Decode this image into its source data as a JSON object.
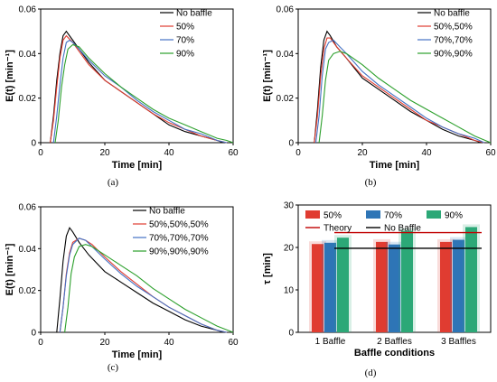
{
  "chart_data": [
    {
      "panel": "(a)",
      "type": "line",
      "xlabel": "Time [min]",
      "ylabel": "E(t) [min⁻¹]",
      "xlim": [
        0,
        60
      ],
      "ylim": [
        0,
        0.06
      ],
      "xticks": [
        "0",
        "20",
        "40",
        "60"
      ],
      "yticks": [
        "0",
        "0.02",
        "0.04",
        "0.06"
      ],
      "legend_position": "top-right",
      "series": [
        {
          "name": "No baffle",
          "color": "#000000",
          "x": [
            3,
            4,
            5,
            6,
            7,
            8,
            10,
            12,
            15,
            20,
            25,
            30,
            35,
            40,
            45,
            50,
            55,
            57
          ],
          "y": [
            0,
            0.012,
            0.028,
            0.04,
            0.048,
            0.05,
            0.046,
            0.042,
            0.036,
            0.028,
            0.023,
            0.018,
            0.013,
            0.008,
            0.005,
            0.003,
            0.001,
            0
          ]
        },
        {
          "name": "50%",
          "color": "#e03c31",
          "x": [
            3,
            4,
            5,
            6,
            7,
            8,
            10,
            12,
            15,
            20,
            25,
            30,
            35,
            40,
            45,
            50,
            55,
            58
          ],
          "y": [
            0,
            0.01,
            0.025,
            0.038,
            0.046,
            0.048,
            0.045,
            0.041,
            0.035,
            0.028,
            0.023,
            0.018,
            0.013,
            0.009,
            0.006,
            0.003,
            0.001,
            0
          ]
        },
        {
          "name": "70%",
          "color": "#4472c4",
          "x": [
            4,
            5,
            6,
            7,
            8,
            9,
            10,
            12,
            15,
            20,
            25,
            30,
            35,
            40,
            45,
            50,
            55,
            58
          ],
          "y": [
            0,
            0.012,
            0.026,
            0.038,
            0.045,
            0.046,
            0.045,
            0.042,
            0.037,
            0.03,
            0.025,
            0.019,
            0.014,
            0.01,
            0.006,
            0.004,
            0.001,
            0
          ]
        },
        {
          "name": "90%",
          "color": "#2ca02c",
          "x": [
            4.5,
            5.5,
            6.5,
            7.5,
            8.5,
            10,
            12,
            15,
            20,
            25,
            30,
            35,
            40,
            45,
            50,
            55,
            58,
            60
          ],
          "y": [
            0,
            0.01,
            0.025,
            0.035,
            0.042,
            0.044,
            0.043,
            0.038,
            0.031,
            0.025,
            0.02,
            0.015,
            0.011,
            0.008,
            0.005,
            0.002,
            0.001,
            0
          ]
        }
      ]
    },
    {
      "panel": "(b)",
      "type": "line",
      "xlabel": "Time [min]",
      "ylabel": "E(t) [min⁻¹]",
      "xlim": [
        0,
        60
      ],
      "ylim": [
        0,
        0.06
      ],
      "xticks": [
        "0",
        "20",
        "40",
        "60"
      ],
      "yticks": [
        "0",
        "0.02",
        "0.04",
        "0.06"
      ],
      "legend_position": "top-right",
      "series": [
        {
          "name": "No baffle",
          "color": "#000000",
          "x": [
            5,
            6,
            7,
            8,
            9,
            10,
            12,
            15,
            20,
            25,
            30,
            35,
            40,
            45,
            50,
            55,
            57
          ],
          "y": [
            0,
            0.015,
            0.034,
            0.046,
            0.05,
            0.048,
            0.043,
            0.038,
            0.029,
            0.024,
            0.019,
            0.014,
            0.01,
            0.006,
            0.003,
            0.001,
            0
          ]
        },
        {
          "name": "50%,50%",
          "color": "#e03c31",
          "x": [
            5,
            6,
            7,
            8,
            9,
            10,
            12,
            15,
            20,
            25,
            30,
            35,
            40,
            45,
            50,
            55,
            58
          ],
          "y": [
            0,
            0.012,
            0.03,
            0.042,
            0.047,
            0.047,
            0.043,
            0.038,
            0.03,
            0.025,
            0.02,
            0.015,
            0.01,
            0.007,
            0.004,
            0.001,
            0
          ]
        },
        {
          "name": "70%,70%",
          "color": "#4472c4",
          "x": [
            5.5,
            6.5,
            7.5,
            8.5,
            9.5,
            11,
            13,
            15,
            20,
            25,
            30,
            35,
            40,
            45,
            50,
            55,
            58
          ],
          "y": [
            0,
            0.012,
            0.03,
            0.042,
            0.045,
            0.046,
            0.043,
            0.04,
            0.032,
            0.026,
            0.021,
            0.016,
            0.011,
            0.007,
            0.004,
            0.002,
            0
          ]
        },
        {
          "name": "90%,90%",
          "color": "#2ca02c",
          "x": [
            6.5,
            7.5,
            8.5,
            9.5,
            11,
            13,
            15,
            20,
            25,
            30,
            35,
            40,
            45,
            50,
            55,
            60
          ],
          "y": [
            0,
            0.012,
            0.028,
            0.037,
            0.04,
            0.041,
            0.04,
            0.035,
            0.029,
            0.024,
            0.019,
            0.015,
            0.011,
            0.007,
            0.003,
            0
          ]
        }
      ]
    },
    {
      "panel": "(c)",
      "type": "line",
      "xlabel": "Time [min]",
      "ylabel": "E(t) [min⁻¹]",
      "xlim": [
        0,
        60
      ],
      "ylim": [
        0,
        0.06
      ],
      "xticks": [
        "0",
        "20",
        "40",
        "60"
      ],
      "yticks": [
        "0",
        "0.02",
        "0.04",
        "0.06"
      ],
      "legend_position": "top-right",
      "series": [
        {
          "name": "No baffle",
          "color": "#000000",
          "x": [
            5,
            6,
            7,
            8,
            9,
            10,
            12,
            15,
            20,
            25,
            30,
            35,
            40,
            45,
            50,
            55,
            57
          ],
          "y": [
            0,
            0.016,
            0.034,
            0.046,
            0.05,
            0.048,
            0.043,
            0.037,
            0.029,
            0.024,
            0.019,
            0.014,
            0.01,
            0.006,
            0.003,
            0.001,
            0
          ]
        },
        {
          "name": "50%,50%,50%",
          "color": "#e03c31",
          "x": [
            6,
            7,
            8,
            9,
            10,
            12,
            14,
            16,
            20,
            25,
            30,
            35,
            40,
            45,
            50,
            55,
            58
          ],
          "y": [
            0,
            0.012,
            0.028,
            0.038,
            0.043,
            0.045,
            0.044,
            0.042,
            0.036,
            0.029,
            0.023,
            0.017,
            0.012,
            0.008,
            0.004,
            0.001,
            0
          ]
        },
        {
          "name": "70%,70%,70%",
          "color": "#4472c4",
          "x": [
            6,
            7,
            8,
            9,
            10,
            12,
            14,
            16,
            20,
            25,
            30,
            35,
            40,
            45,
            50,
            55,
            58
          ],
          "y": [
            0,
            0.012,
            0.027,
            0.037,
            0.042,
            0.045,
            0.044,
            0.041,
            0.035,
            0.028,
            0.022,
            0.017,
            0.012,
            0.008,
            0.004,
            0.001,
            0
          ]
        },
        {
          "name": "90%,90%,90%",
          "color": "#2ca02c",
          "x": [
            7.5,
            8.5,
            9.5,
            10.5,
            12,
            14,
            16,
            20,
            25,
            30,
            35,
            40,
            45,
            50,
            55,
            60
          ],
          "y": [
            0,
            0.012,
            0.028,
            0.036,
            0.041,
            0.042,
            0.041,
            0.037,
            0.032,
            0.027,
            0.021,
            0.016,
            0.011,
            0.007,
            0.003,
            0
          ]
        }
      ]
    },
    {
      "panel": "(d)",
      "type": "bar",
      "xlabel": "Baffle conditions",
      "ylabel": "τ [min]",
      "ylim": [
        0,
        30
      ],
      "yticks": [
        "0",
        "10",
        "20",
        "30"
      ],
      "categories": [
        "1 Baffle",
        "2 Baffles",
        "3 Baffles"
      ],
      "legend_position": "top",
      "series": [
        {
          "name": "50%",
          "color": "#e03c31",
          "values": [
            20.8,
            21.3,
            21.3
          ]
        },
        {
          "name": "70%",
          "color": "#2e75b6",
          "values": [
            21.1,
            20.7,
            21.8
          ]
        },
        {
          "name": "90%",
          "color": "#2ca877",
          "values": [
            22.3,
            23.9,
            24.8
          ]
        }
      ],
      "reference_lines": [
        {
          "name": "Theory",
          "color": "#c00000",
          "value": 23.5
        },
        {
          "name": "No Baffle",
          "color": "#000000",
          "value": 19.8
        }
      ]
    }
  ]
}
